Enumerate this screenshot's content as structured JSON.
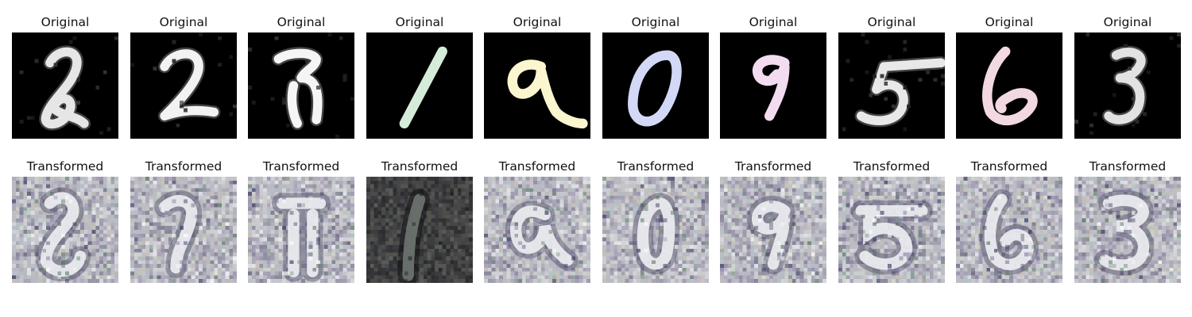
{
  "figure": {
    "rows": [
      {
        "row_id": "original",
        "panel_title": "Original",
        "panels": [
          {
            "digit": "2",
            "style": "grayscale-noisy",
            "ink": "#e6e6e6"
          },
          {
            "digit": "2",
            "style": "grayscale-noisy",
            "ink": "#f2f2f2"
          },
          {
            "digit": "7",
            "style": "grayscale-noisy",
            "ink": "#f5f5f5"
          },
          {
            "digit": "1",
            "style": "flat-colored",
            "ink": "#d4ecd9"
          },
          {
            "digit": "9",
            "style": "flat-colored",
            "ink": "#fbf6cf"
          },
          {
            "digit": "0",
            "style": "flat-colored",
            "ink": "#d2d8f6"
          },
          {
            "digit": "9",
            "style": "flat-colored",
            "ink": "#f3dcef"
          },
          {
            "digit": "5",
            "style": "grayscale-noisy",
            "ink": "#e8e8e8"
          },
          {
            "digit": "6",
            "style": "flat-colored",
            "ink": "#f2d8e0"
          },
          {
            "digit": "3",
            "style": "grayscale-noisy",
            "ink": "#e2e2e2"
          }
        ]
      },
      {
        "row_id": "transformed",
        "panel_title": "Transformed",
        "panels": [
          {
            "digit": "2",
            "style": "noisy-color"
          },
          {
            "digit": "2",
            "style": "noisy-color"
          },
          {
            "digit": "7",
            "style": "noisy-color"
          },
          {
            "digit": "1",
            "style": "dark-noisy"
          },
          {
            "digit": "9",
            "style": "noisy-color"
          },
          {
            "digit": "0",
            "style": "noisy-color"
          },
          {
            "digit": "9",
            "style": "noisy-color"
          },
          {
            "digit": "5",
            "style": "noisy-color"
          },
          {
            "digit": "6",
            "style": "noisy-color"
          },
          {
            "digit": "3",
            "style": "noisy-color"
          }
        ]
      }
    ]
  }
}
